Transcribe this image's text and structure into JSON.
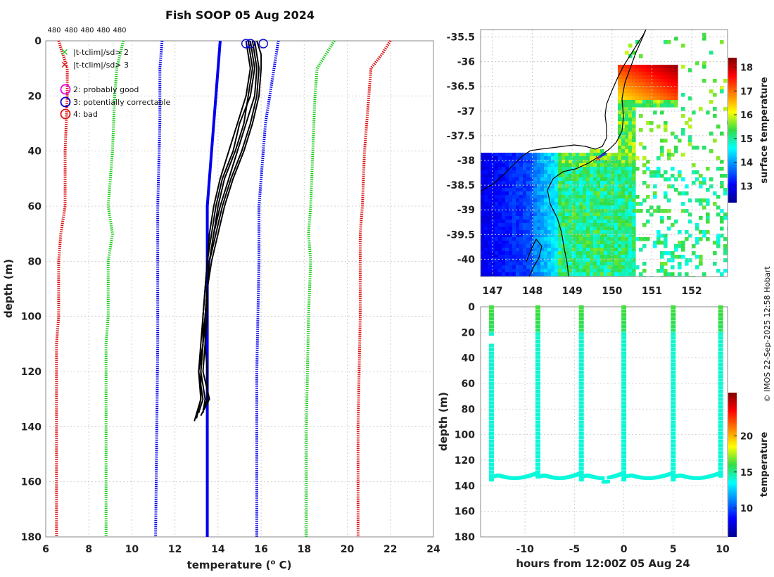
{
  "title": "Fish SOOP 05 Aug 2024",
  "credit": "© IMOS 22-Sep-2025 12:58 Hobart",
  "colors": {
    "clim1": "#22cc22",
    "clim2": "#dd1111",
    "mean": "#0000ee",
    "profile": "#000000",
    "flag2": "#ee00ee",
    "flag3": "#0000cc",
    "flag4": "#dd1111",
    "land": "#ffffff"
  },
  "chart_data": [
    {
      "id": "profile",
      "type": "line",
      "title": "Fish SOOP 05 Aug 2024",
      "xlabel": "temperature (",
      "xlabel_sup": "o",
      "xlabel_end": " C)",
      "ylabel": "depth (m)",
      "xlim": [
        6,
        24
      ],
      "ylim": [
        180,
        0
      ],
      "xticks": [
        6,
        8,
        10,
        12,
        14,
        16,
        18,
        20,
        22,
        24
      ],
      "yticks": [
        0,
        20,
        40,
        60,
        80,
        100,
        120,
        140,
        160,
        180
      ],
      "top_labels": [
        "480",
        "480",
        "480",
        "480",
        "480"
      ],
      "legend": [
        {
          "symbol": "x",
          "color": "#22cc22",
          "text": "|t-tclim|/sd> 2"
        },
        {
          "symbol": "x",
          "color": "#dd1111",
          "text": "|t-tclim|/sd> 3"
        },
        {
          "symbol": "o",
          "color": "#ee00ee",
          "text": "2: probably good"
        },
        {
          "symbol": "o",
          "color": "#0000cc",
          "text": "3: potentially correctable"
        },
        {
          "symbol": "o",
          "color": "#dd1111",
          "text": "4: bad"
        }
      ],
      "climatology": [
        {
          "name": "mean",
          "style": "solid",
          "color": "#0000ee",
          "depth": [
            0,
            10,
            30,
            60,
            180
          ],
          "temp": [
            14.1,
            14.0,
            13.8,
            13.5,
            13.5
          ]
        },
        {
          "name": "-2sd",
          "style": "dotted",
          "color": "#22cc22",
          "depth": [
            0,
            10,
            20,
            40,
            60,
            70,
            80,
            100,
            110,
            140,
            180
          ],
          "temp": [
            9.6,
            9.3,
            9.2,
            9.1,
            8.9,
            9.1,
            8.9,
            8.9,
            8.8,
            8.8,
            8.8
          ]
        },
        {
          "name": "+2sd",
          "style": "dotted",
          "color": "#22cc22",
          "depth": [
            0,
            5,
            10,
            20,
            40,
            60,
            70,
            80,
            100,
            140,
            180
          ],
          "temp": [
            19.4,
            19.0,
            18.6,
            18.5,
            18.4,
            18.3,
            18.2,
            18.3,
            18.2,
            18.1,
            18.1
          ]
        },
        {
          "name": "-2sd-b",
          "style": "dotted",
          "color": "#0000ee",
          "depth": [
            0,
            10,
            30,
            60,
            80,
            110,
            180
          ],
          "temp": [
            11.4,
            11.3,
            11.3,
            11.2,
            11.2,
            11.2,
            11.1
          ]
        },
        {
          "name": "+2sd-b",
          "style": "dotted",
          "color": "#0000ee",
          "depth": [
            0,
            10,
            30,
            60,
            80,
            120,
            180
          ],
          "temp": [
            16.8,
            16.6,
            16.2,
            15.9,
            15.9,
            15.8,
            15.8
          ]
        },
        {
          "name": "-3sd",
          "style": "dotted",
          "color": "#dd1111",
          "depth": [
            0,
            5,
            10,
            20,
            40,
            60,
            70,
            80,
            100,
            110,
            140,
            180
          ],
          "temp": [
            6.6,
            6.8,
            7.0,
            7.0,
            6.9,
            6.9,
            6.7,
            6.6,
            6.6,
            6.5,
            6.5,
            6.5
          ]
        },
        {
          "name": "+3sd",
          "style": "dotted",
          "color": "#dd1111",
          "depth": [
            0,
            5,
            10,
            20,
            40,
            60,
            70,
            80,
            100,
            140,
            180
          ],
          "temp": [
            22.0,
            21.6,
            21.1,
            21.0,
            20.8,
            20.7,
            20.6,
            20.6,
            20.6,
            20.5,
            20.5
          ]
        }
      ],
      "profiles": [
        {
          "depth": [
            0,
            5,
            10,
            20,
            30,
            40,
            50,
            60,
            70,
            80,
            90,
            100,
            110,
            120,
            130,
            135
          ],
          "temp": [
            15.4,
            15.5,
            15.6,
            15.4,
            15.2,
            14.8,
            14.3,
            14.0,
            13.8,
            13.6,
            13.5,
            13.4,
            13.3,
            13.2,
            13.4,
            13.3
          ]
        },
        {
          "depth": [
            0,
            5,
            10,
            20,
            30,
            40,
            50,
            60,
            70,
            80,
            90,
            100,
            110,
            120,
            130,
            137
          ],
          "temp": [
            15.6,
            15.7,
            15.8,
            15.7,
            15.3,
            14.9,
            14.5,
            14.1,
            13.8,
            13.6,
            13.5,
            13.4,
            13.3,
            13.1,
            13.2,
            13.0
          ]
        },
        {
          "depth": [
            0,
            5,
            10,
            20,
            30,
            40,
            50,
            60,
            70,
            80,
            90,
            100,
            110,
            120,
            130,
            134
          ],
          "temp": [
            15.8,
            16.0,
            16.0,
            15.9,
            15.6,
            15.2,
            14.7,
            14.3,
            14.0,
            13.7,
            13.5,
            13.5,
            13.4,
            13.5,
            13.5,
            13.3
          ]
        },
        {
          "depth": [
            0,
            5,
            10,
            20,
            30,
            40,
            50,
            60,
            70,
            80,
            90,
            100,
            110,
            120,
            130,
            138
          ],
          "temp": [
            15.5,
            15.6,
            15.7,
            15.5,
            15.0,
            14.7,
            14.2,
            13.9,
            13.7,
            13.5,
            13.4,
            13.3,
            13.3,
            13.2,
            13.2,
            12.9
          ]
        },
        {
          "depth": [
            0,
            5,
            10,
            20,
            30,
            40,
            50,
            60,
            70,
            80,
            90,
            100,
            110,
            120,
            130,
            136
          ],
          "temp": [
            15.7,
            15.8,
            15.9,
            15.8,
            15.5,
            15.1,
            14.6,
            14.2,
            13.9,
            13.6,
            13.5,
            13.4,
            13.4,
            13.3,
            13.6,
            13.2
          ]
        },
        {
          "depth": [
            0,
            5,
            10,
            20,
            30,
            40,
            50,
            60,
            70,
            80,
            90,
            100,
            110,
            120,
            130,
            135
          ],
          "temp": [
            15.3,
            15.4,
            15.5,
            15.3,
            14.9,
            14.5,
            14.1,
            13.8,
            13.6,
            13.5,
            13.4,
            13.3,
            13.2,
            13.1,
            13.3,
            13.1
          ]
        }
      ],
      "flag_markers": [
        {
          "temp": 15.3,
          "depth": 0,
          "color": "#0000cc"
        },
        {
          "temp": 15.5,
          "depth": 0,
          "color": "#0000cc"
        },
        {
          "temp": 16.1,
          "depth": 0,
          "color": "#0000cc"
        }
      ]
    },
    {
      "id": "map",
      "type": "heatmap",
      "colorbar_label": "surface temperature",
      "xticks": [
        147,
        148,
        149,
        150,
        151,
        152
      ],
      "yticks": [
        -35.5,
        -36,
        -36.5,
        -37,
        -37.5,
        -38,
        -38.5,
        -39,
        -39.5,
        -40
      ],
      "xlim": [
        146.7,
        152.9
      ],
      "ylim": [
        -40.35,
        -35.35
      ],
      "colorbar_ticks": [
        13,
        14,
        15,
        16,
        17,
        18
      ],
      "colorbar_range": [
        12.3,
        18.4
      ],
      "ship_track_lon": [
        149.65,
        149.85
      ],
      "ship_track_lat": [
        -37.95,
        -37.85
      ]
    },
    {
      "id": "timeseries",
      "type": "scatter",
      "xlabel": "hours from 12:00Z 05 Aug 24",
      "ylabel": "depth (m)",
      "colorbar_label": "temperature",
      "xlim": [
        -14.5,
        10.5
      ],
      "ylim": [
        180,
        0
      ],
      "xticks": [
        -10,
        -5,
        0,
        5,
        10
      ],
      "yticks": [
        0,
        20,
        40,
        60,
        80,
        100,
        120,
        140,
        160,
        180
      ],
      "colorbar_ticks": [
        10,
        15,
        20
      ],
      "colorbar_range": [
        6,
        26
      ],
      "casts_hours": [
        -13.4,
        -8.7,
        -4.3,
        0.0,
        5.0,
        9.8
      ],
      "bottom_depth": [
        135,
        133,
        136,
        137,
        135,
        132
      ]
    }
  ]
}
